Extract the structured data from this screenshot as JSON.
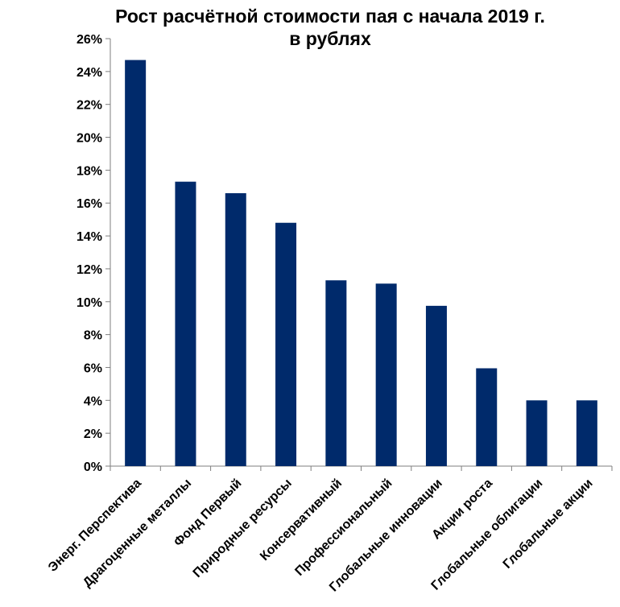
{
  "chart_data": {
    "type": "bar",
    "title": "Рост расчётной стоимости пая с начала 2019 г.",
    "subtitle": "в рублях",
    "categories": [
      "Энерг. Перспектива",
      "Драгоценные металлы",
      "Фонд Первый",
      "Природные ресурсы",
      "Консервативный",
      "Профессиональный",
      "Глобальные инновации",
      "Акции роста",
      "Глобальные облигации",
      "Глобальные акции"
    ],
    "values": [
      24.7,
      17.3,
      16.6,
      14.8,
      11.3,
      11.1,
      9.75,
      5.95,
      4.0,
      4.0
    ],
    "ylim": [
      0,
      26
    ],
    "yticks": [
      0,
      2,
      4,
      6,
      8,
      10,
      12,
      14,
      16,
      18,
      20,
      22,
      24,
      26
    ],
    "ytick_suffix": "%",
    "grid": false,
    "colors": {
      "bar": "#002A6B",
      "axis": "#7F7F7F"
    }
  }
}
